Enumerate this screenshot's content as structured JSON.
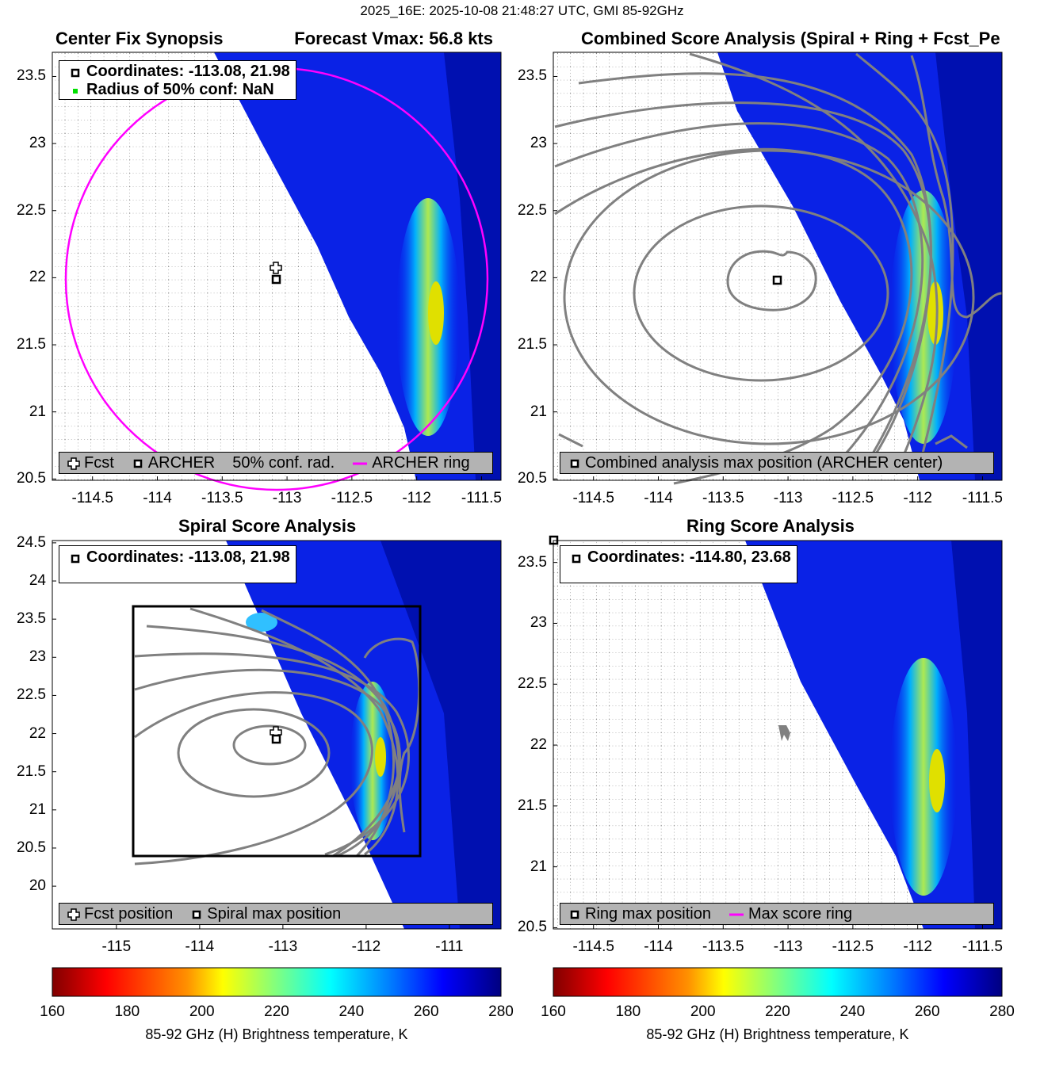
{
  "suptitle": "2025_16E: 2025-10-08 21:48:27 UTC, GMI 85-92GHz",
  "panels": [
    {
      "title_left": "Center Fix Synopsis",
      "title_right": "Forecast Vmax: 56.8 kts",
      "xlim": [
        -114.81,
        -111.35
      ],
      "ylim": [
        20.49,
        23.68
      ],
      "xticks": [
        "-114.5",
        "-114",
        "-113.5",
        "-113",
        "-112.5",
        "-112",
        "-111.5"
      ],
      "yticks": [
        "20.5",
        "21",
        "21.5",
        "22",
        "22.5",
        "23",
        "23.5"
      ],
      "info": [
        "Coordinates: -113.08, 21.98",
        "Radius of 50% conf: NaN"
      ],
      "legend": [
        "Fcst",
        "ARCHER",
        "50% conf. rad.",
        "ARCHER ring"
      ]
    },
    {
      "title": "Combined Score Analysis (Spiral + Ring + Fcst_Pe",
      "xlim": [
        -114.81,
        -111.35
      ],
      "ylim": [
        20.49,
        23.68
      ],
      "xticks": [
        "-114.5",
        "-114",
        "-113.5",
        "-113",
        "-112.5",
        "-112",
        "-111.5"
      ],
      "yticks": [
        "20.5",
        "21",
        "21.5",
        "22",
        "22.5",
        "23",
        "23.5"
      ],
      "legend": [
        "Combined analysis max position (ARCHER center)"
      ]
    },
    {
      "title": "Spiral Score Analysis",
      "xlim": [
        -115.77,
        -110.38
      ],
      "ylim": [
        19.44,
        24.53
      ],
      "xticks": [
        "-115",
        "-114",
        "-113",
        "-112",
        "-111"
      ],
      "yticks": [
        "20",
        "20.5",
        "21",
        "21.5",
        "22",
        "22.5",
        "23",
        "23.5",
        "24",
        "24.5"
      ],
      "info": [
        "Coordinates: -113.08, 21.98"
      ],
      "legend": [
        "Fcst position",
        "Spiral max position"
      ]
    },
    {
      "title": "Ring Score Analysis",
      "xlim": [
        -114.81,
        -111.35
      ],
      "ylim": [
        20.49,
        23.68
      ],
      "xticks": [
        "-114.5",
        "-114",
        "-113.5",
        "-113",
        "-112.5",
        "-112",
        "-111.5"
      ],
      "yticks": [
        "20.5",
        "21",
        "21.5",
        "22",
        "22.5",
        "23",
        "23.5"
      ],
      "info": [
        "Coordinates: -114.80, 23.68"
      ],
      "legend": [
        "Ring max position",
        "Max score ring"
      ]
    }
  ],
  "colorbar": {
    "ticks": [
      "160",
      "180",
      "200",
      "220",
      "240",
      "260",
      "280"
    ],
    "range": [
      160,
      280
    ],
    "label": "85-92 GHz (H) Brightness temperature, K",
    "colormap": [
      "#800000",
      "#ff0000",
      "#ff8000",
      "#ffff00",
      "#80ff80",
      "#00ffff",
      "#0080ff",
      "#0000ff",
      "#000080"
    ]
  },
  "chart_data": [
    {
      "type": "heatmap",
      "title": "Center Fix Synopsis",
      "center": [
        -113.08,
        21.98
      ],
      "ring_color": "#ff00ff"
    },
    {
      "type": "heatmap",
      "title": "Combined Score Analysis (Spiral + Ring + Fcst_Pe",
      "center": [
        -113.08,
        21.98
      ],
      "contour_color": "#808080"
    },
    {
      "type": "heatmap",
      "title": "Spiral Score Analysis",
      "center": [
        -113.08,
        21.98
      ]
    },
    {
      "type": "heatmap",
      "title": "Ring Score Analysis",
      "center": [
        -114.8,
        23.68
      ]
    }
  ]
}
